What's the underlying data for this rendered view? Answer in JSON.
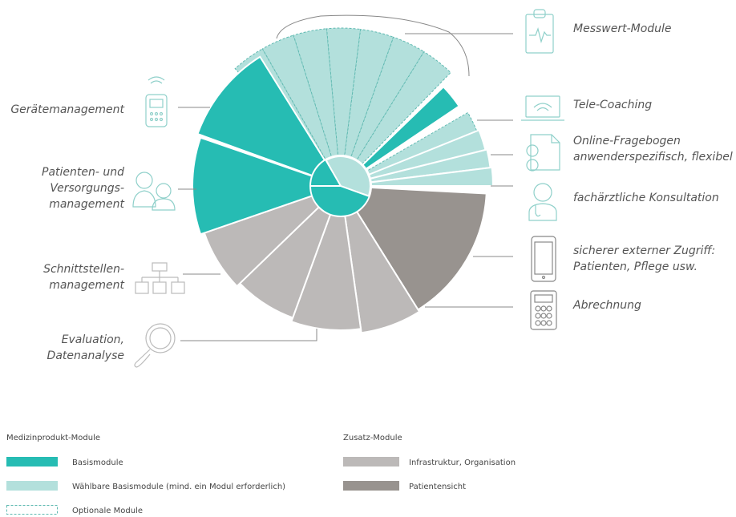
{
  "labels": {
    "left": [
      [
        "Gerätemanagement"
      ],
      [
        "Patienten- und",
        "Versorgungs-",
        "management"
      ],
      [
        "Schnittstellen-",
        "management"
      ],
      [
        "Evaluation,",
        "Datenanalyse"
      ]
    ],
    "right": [
      [
        "Messwert-Module"
      ],
      [
        "Tele-Coaching"
      ],
      [
        "Online-Fragebogen",
        "anwenderspezifisch, flexibel"
      ],
      [
        "fachärztliche Konsultation"
      ],
      [
        "sicherer externer Zugriff:",
        "Patienten, Pflege usw."
      ],
      [
        "Abrechnung"
      ]
    ]
  },
  "legend": {
    "groups": [
      {
        "title": "Medizinprodukt-Module",
        "items": [
          "Basismodule",
          "Wählbare Basismodule (mind. ein Modul erforderlich)",
          "Optionale Module"
        ]
      },
      {
        "title": "Zusatz-Module",
        "items": [
          "Infrastruktur, Organisation",
          "Patientensicht"
        ]
      }
    ]
  }
}
